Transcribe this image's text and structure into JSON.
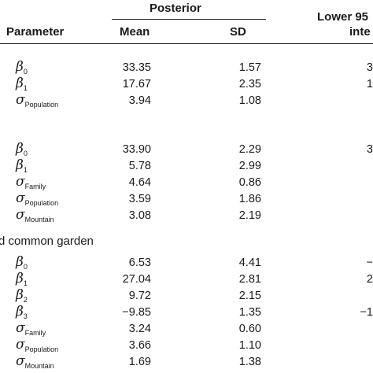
{
  "header": {
    "posterior": "Posterior",
    "lower95": "Lower 95",
    "lower95_line2": "inte",
    "parameter": "Parameter",
    "mean": "Mean",
    "sd": "SD"
  },
  "section3_label": "d common garden",
  "block1": [
    {
      "sym": "β",
      "sub": "0",
      "mean": "33.35",
      "sd": "1.57",
      "ci": "3"
    },
    {
      "sym": "β",
      "sub": "1",
      "mean": "17.67",
      "sd": "2.35",
      "ci": "1"
    },
    {
      "sym": "σ",
      "sub": "Population",
      "mean": "3.94",
      "sd": "1.08",
      "ci": ""
    }
  ],
  "block2": [
    {
      "sym": "β",
      "sub": "0",
      "mean": "33.90",
      "sd": "2.29",
      "ci": "3"
    },
    {
      "sym": "β",
      "sub": "1",
      "mean": "5.78",
      "sd": "2.99",
      "ci": ""
    },
    {
      "sym": "σ",
      "sub": "Family",
      "mean": "4.64",
      "sd": "0.86",
      "ci": ""
    },
    {
      "sym": "σ",
      "sub": "Population",
      "mean": "3.59",
      "sd": "1.86",
      "ci": ""
    },
    {
      "sym": "σ",
      "sub": "Mountain",
      "mean": "3.08",
      "sd": "2.19",
      "ci": ""
    }
  ],
  "block3": [
    {
      "sym": "β",
      "sub": "0",
      "mean": "6.53",
      "sd": "4.41",
      "ci": "−"
    },
    {
      "sym": "β",
      "sub": "1",
      "mean": "27.04",
      "sd": "2.81",
      "ci": "2"
    },
    {
      "sym": "β",
      "sub": "2",
      "mean": "9.72",
      "sd": "2.15",
      "ci": ""
    },
    {
      "sym": "β",
      "sub": "3",
      "mean": "−9.85",
      "sd": "1.35",
      "ci": "−1"
    },
    {
      "sym": "σ",
      "sub": "Family",
      "mean": "3.24",
      "sd": "0.60",
      "ci": ""
    },
    {
      "sym": "σ",
      "sub": "Population",
      "mean": "3.66",
      "sd": "1.10",
      "ci": ""
    },
    {
      "sym": "σ",
      "sub": "Mountain",
      "mean": "1.69",
      "sd": "1.38",
      "ci": ""
    }
  ]
}
